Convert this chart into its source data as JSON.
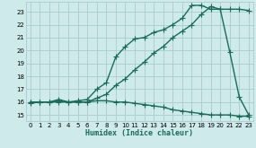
{
  "xlabel": "Humidex (Indice chaleur)",
  "background_color": "#ceeaea",
  "grid_color": "#aacccc",
  "line_color": "#1a6b5a",
  "xlim": [
    -0.5,
    23.5
  ],
  "ylim": [
    14.5,
    23.8
  ],
  "yticks": [
    15,
    16,
    17,
    18,
    19,
    20,
    21,
    22,
    23
  ],
  "xticks": [
    0,
    1,
    2,
    3,
    4,
    5,
    6,
    7,
    8,
    9,
    10,
    11,
    12,
    13,
    14,
    15,
    16,
    17,
    18,
    19,
    20,
    21,
    22,
    23
  ],
  "line1_x": [
    0,
    1,
    2,
    3,
    4,
    5,
    6,
    7,
    8,
    9,
    10,
    11,
    12,
    13,
    14,
    15,
    16,
    17,
    18,
    19,
    20,
    21,
    22,
    23
  ],
  "line1_y": [
    15.9,
    16.0,
    16.0,
    16.0,
    16.0,
    16.0,
    16.0,
    16.1,
    16.1,
    16.0,
    16.0,
    15.9,
    15.8,
    15.7,
    15.6,
    15.4,
    15.3,
    15.2,
    15.1,
    15.0,
    15.0,
    15.0,
    14.9,
    14.9
  ],
  "line2_x": [
    0,
    1,
    2,
    3,
    4,
    5,
    6,
    7,
    8,
    9,
    10,
    11,
    12,
    13,
    14,
    15,
    16,
    17,
    18,
    19,
    20,
    21,
    22,
    23
  ],
  "line2_y": [
    16.0,
    16.0,
    16.0,
    16.1,
    16.0,
    16.0,
    16.0,
    16.3,
    16.6,
    17.3,
    17.8,
    18.5,
    19.1,
    19.8,
    20.3,
    21.0,
    21.5,
    22.0,
    22.8,
    23.4,
    23.2,
    19.9,
    16.4,
    15.0
  ],
  "line3_x": [
    0,
    1,
    2,
    3,
    4,
    5,
    6,
    7,
    8,
    9,
    10,
    11,
    12,
    13,
    14,
    15,
    16,
    17,
    18,
    19,
    20,
    21,
    22,
    23
  ],
  "line3_y": [
    16.0,
    16.0,
    16.0,
    16.2,
    16.0,
    16.1,
    16.2,
    17.0,
    17.5,
    19.5,
    20.3,
    20.9,
    21.0,
    21.4,
    21.6,
    22.0,
    22.5,
    23.5,
    23.5,
    23.2,
    23.2,
    23.2,
    23.2,
    23.1
  ],
  "marker": "+",
  "markersize": 4,
  "linewidth": 1.0
}
